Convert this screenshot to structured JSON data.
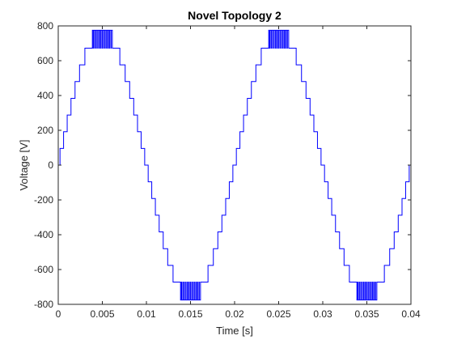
{
  "chart_data": {
    "type": "line",
    "title": "Novel Topology 2",
    "xlabel": "Time [s]",
    "ylabel": "Voltage [V]",
    "xlim": [
      0,
      0.04
    ],
    "ylim": [
      -800,
      800
    ],
    "x_ticks": [
      0,
      0.005,
      0.01,
      0.015,
      0.02,
      0.025,
      0.03,
      0.035,
      0.04
    ],
    "x_tick_labels": [
      "0",
      "0.005",
      "0.01",
      "0.015",
      "0.02",
      "0.025",
      "0.03",
      "0.035",
      "0.04"
    ],
    "y_ticks": [
      -800,
      -600,
      -400,
      -200,
      0,
      200,
      400,
      600,
      800
    ],
    "y_tick_labels": [
      "-800",
      "-600",
      "-400",
      "-200",
      "0",
      "200",
      "400",
      "600",
      "800"
    ],
    "grid": false,
    "series": [
      {
        "color": "#0000ff",
        "waveform": "staircase sine",
        "frequency_hz": 50,
        "peak_v": 775,
        "levels_v": [
          0,
          96,
          192,
          288,
          384,
          480,
          576,
          672,
          775
        ],
        "peak_chatter_between_v": [
          672,
          775
        ]
      }
    ]
  }
}
